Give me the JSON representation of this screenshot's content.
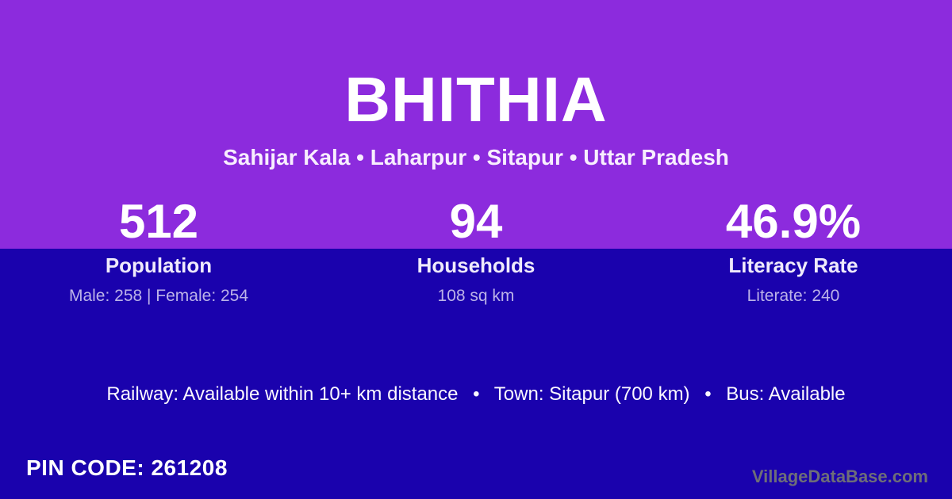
{
  "theme": {
    "header_bg": "#8C2BDD",
    "body_bg": "#1A02AD",
    "title_color": "#FFFFFF",
    "subtitle_color": "#F8EEFE",
    "value_color": "#FFFFFF",
    "label_color": "#EFEAFB",
    "detail_color": "#BCB2E8",
    "transport_color": "#FBF8FF",
    "pin_color": "#FFFFFF",
    "watermark_color": "#6E6E78"
  },
  "header": {
    "title": "BHITHIA",
    "subtitle": "Sahijar Kala • Laharpur • Sitapur • Uttar Pradesh"
  },
  "stats": [
    {
      "value": "512",
      "label": "Population",
      "detail": "Male: 258 | Female: 254"
    },
    {
      "value": "94",
      "label": "Households",
      "detail": "108 sq km"
    },
    {
      "value": "46.9%",
      "label": "Literacy Rate",
      "detail": "Literate: 240"
    }
  ],
  "transport_line": "Railway: Available within 10+ km distance  •  Town: Sitapur (700 km)  •  Bus: Available",
  "footer": {
    "pin_code": "PIN CODE: 261208",
    "watermark": "VillageDataBase.com"
  }
}
